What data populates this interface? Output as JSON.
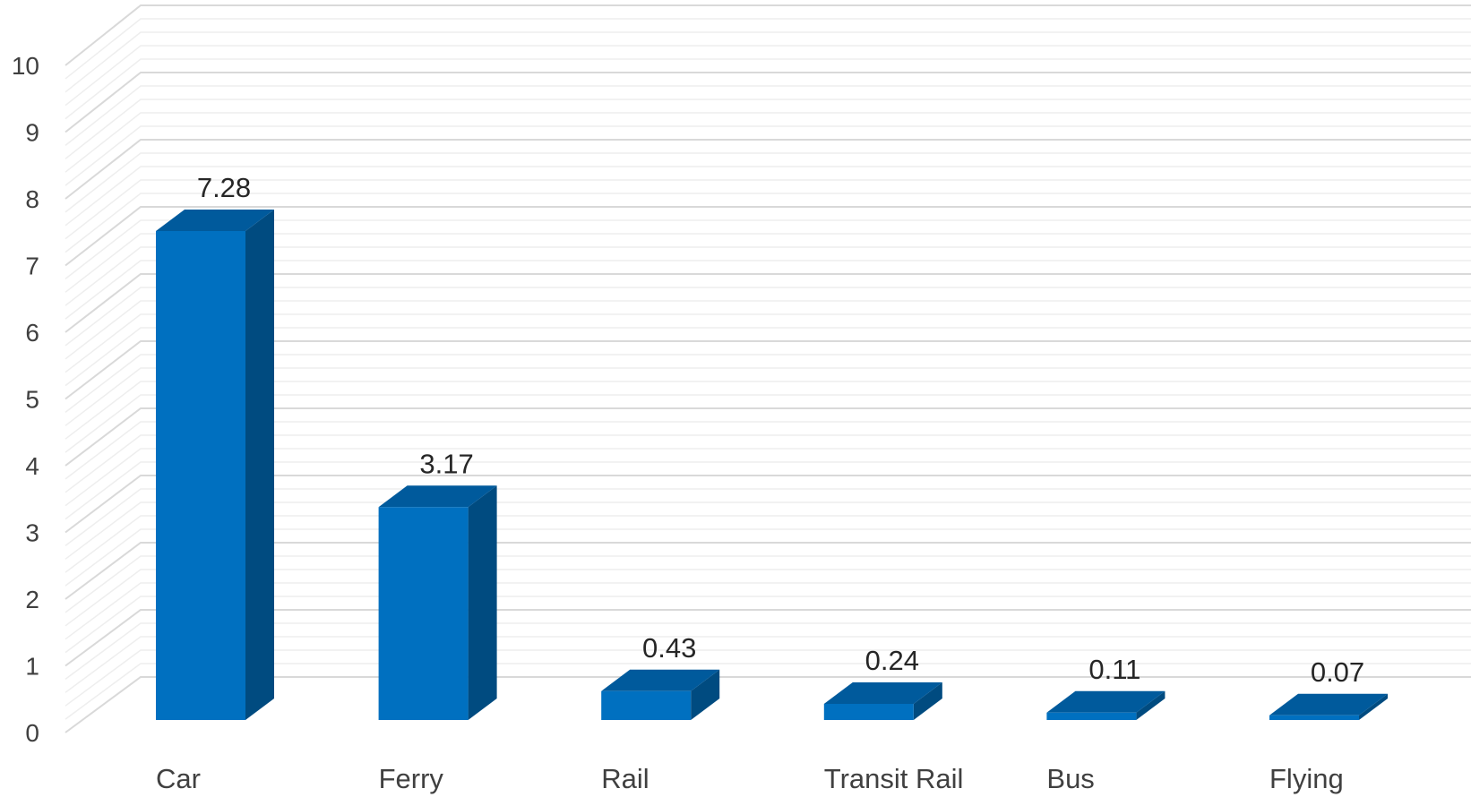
{
  "chart_data": {
    "type": "bar",
    "categories": [
      "Car",
      "Ferry",
      "Rail",
      "Transit Rail",
      "Bus",
      "Flying"
    ],
    "values": [
      7.28,
      3.17,
      0.43,
      0.24,
      0.11,
      0.07
    ],
    "data_labels": [
      "7.28",
      "3.17",
      "0.43",
      "0.24",
      "0.11",
      "0.07"
    ],
    "title": "",
    "xlabel": "",
    "ylabel": "",
    "ylim": [
      0,
      10
    ],
    "y_ticks": [
      "0",
      "1",
      "2",
      "3",
      "4",
      "5",
      "6",
      "7",
      "8",
      "9",
      "10"
    ],
    "grid": true,
    "style": "3d-column",
    "colors": {
      "front": "#0070c0",
      "side": "#004b80",
      "top": "#005a9c",
      "major_grid": "#d9d9d9",
      "minor_grid": "#eeeeee"
    }
  }
}
